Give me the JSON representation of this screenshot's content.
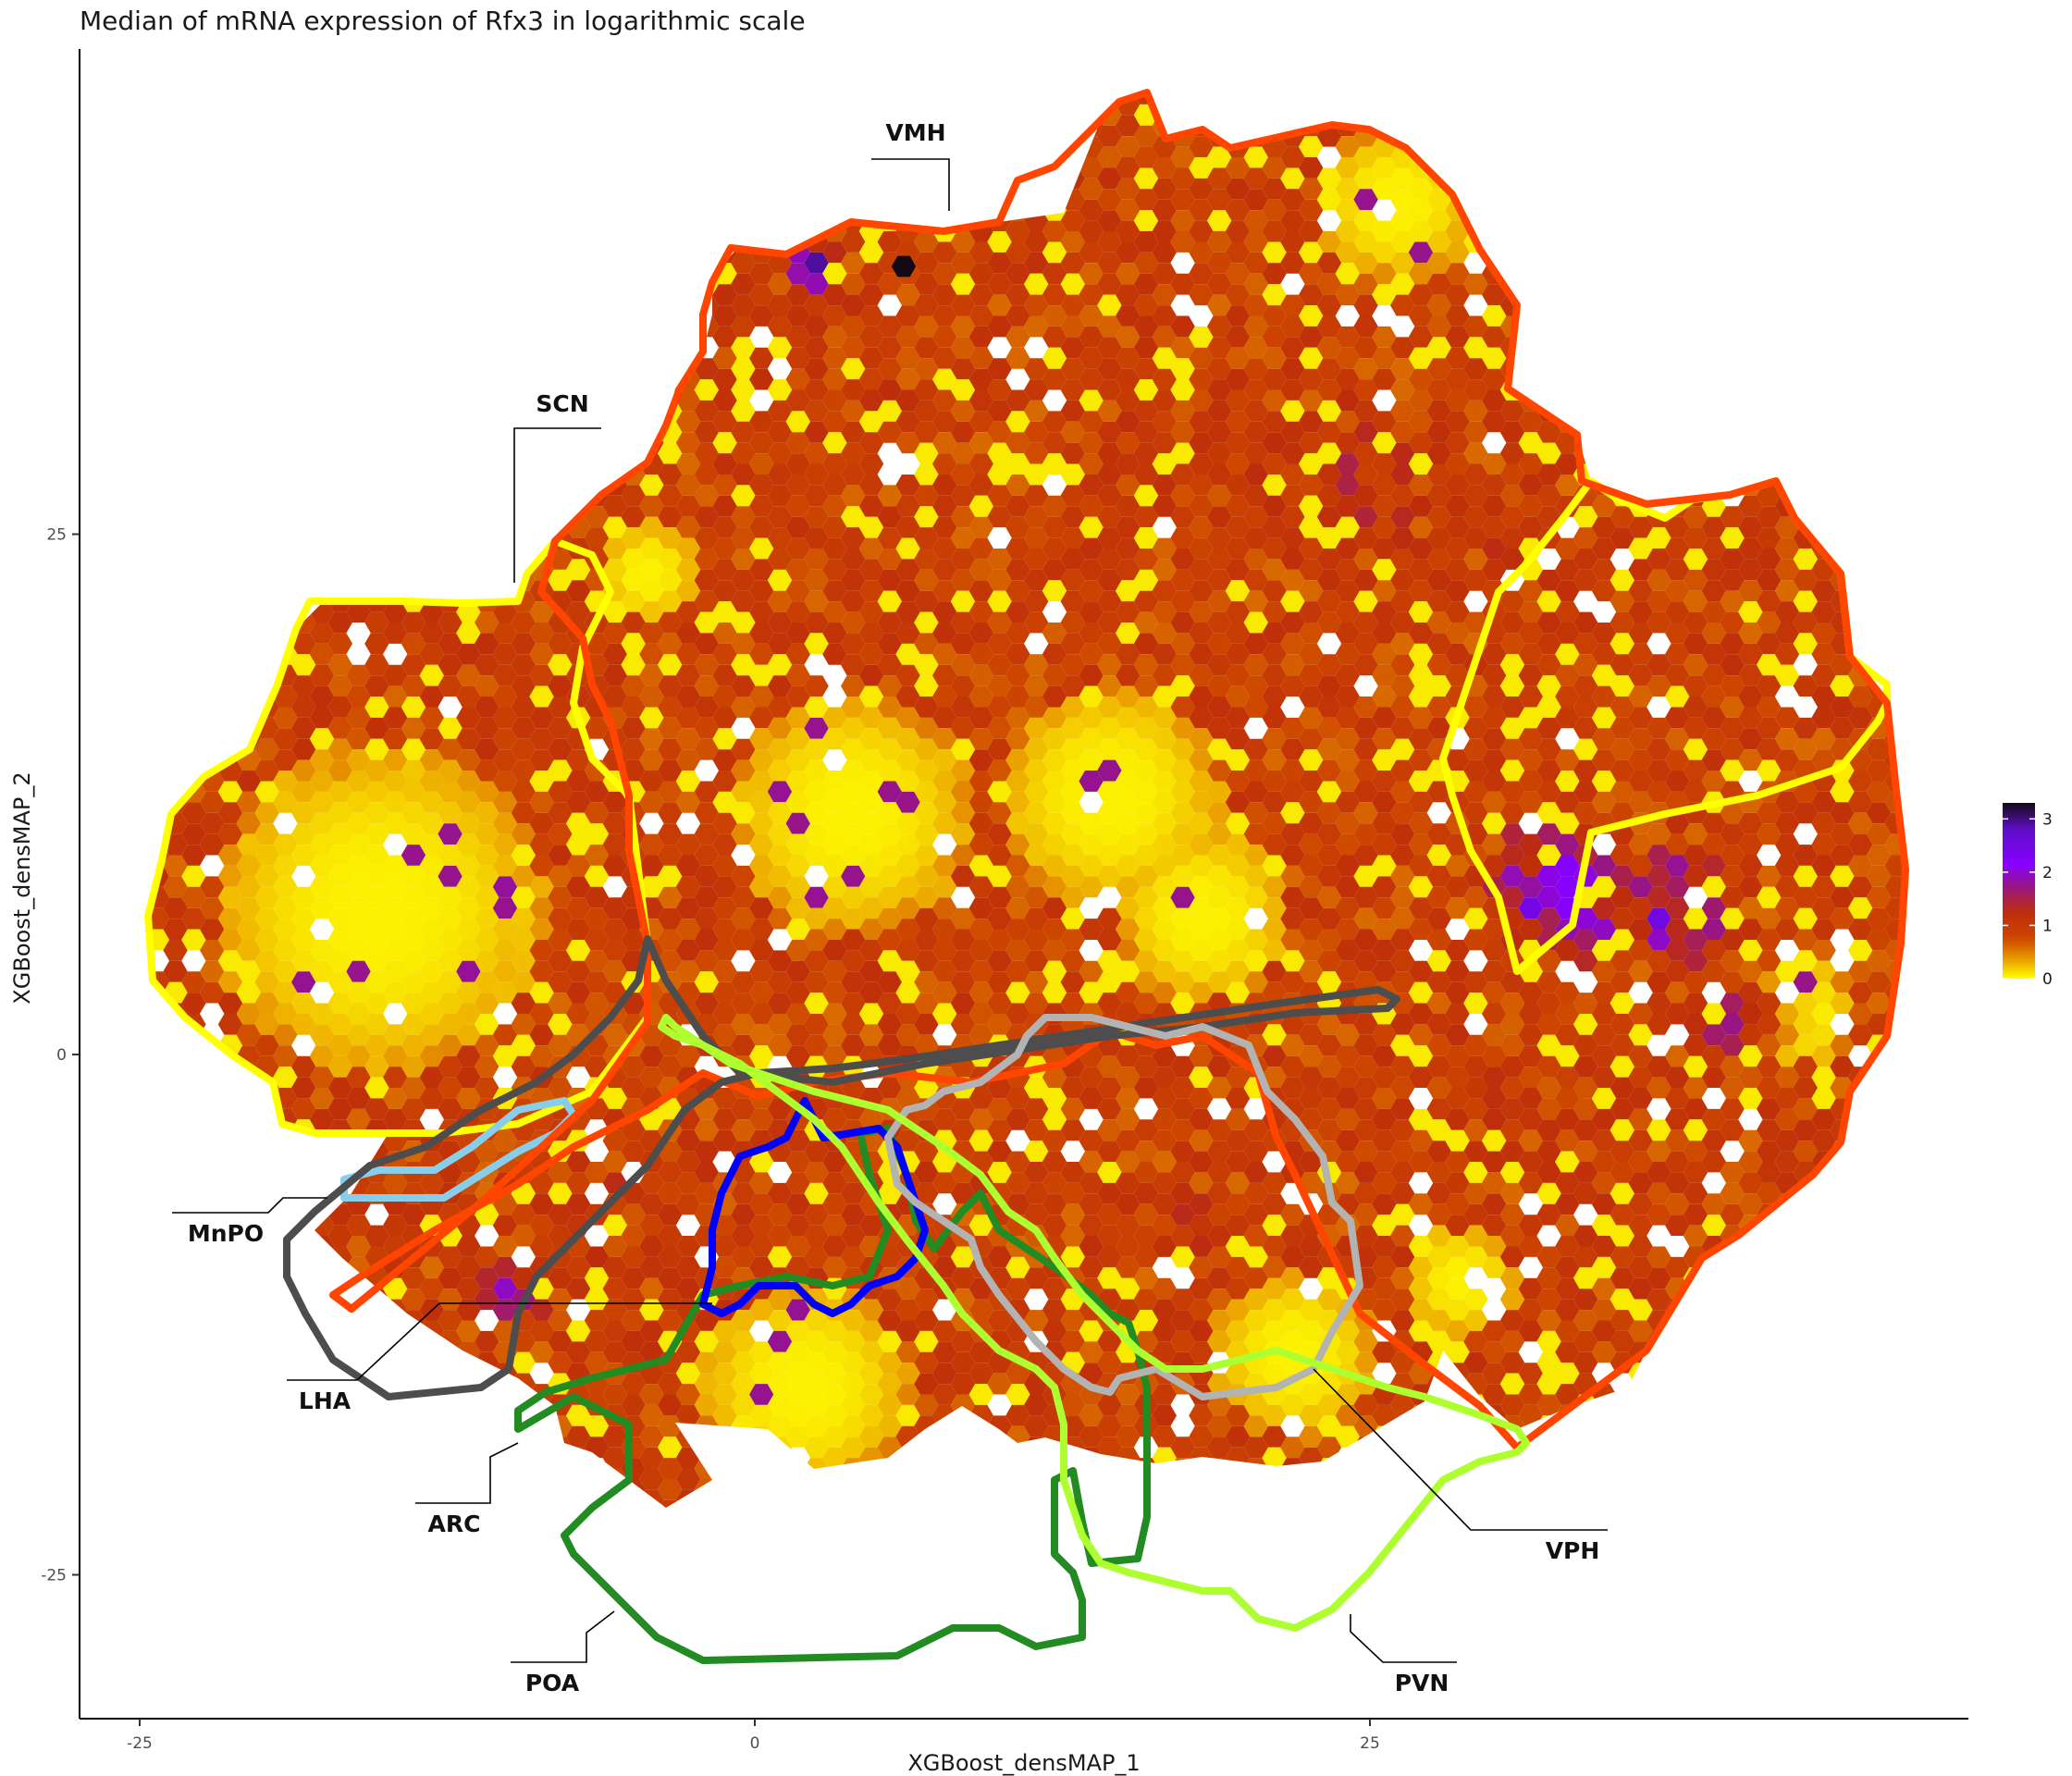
{
  "chart_data": {
    "type": "hexbin",
    "title": "Median of mRNA expression of Rfx3 in logarithmic scale",
    "xlabel": "XGBoost_densMAP_1",
    "ylabel": "XGBoost_densMAP_2",
    "x_ticks": [
      -25,
      0,
      25
    ],
    "y_ticks": [
      25,
      0,
      -25
    ],
    "xlim": [
      -25.5,
      49.5
    ],
    "ylim": [
      -32,
      48
    ],
    "grid": false,
    "legend": {
      "position": "right",
      "ticks": [
        3,
        2,
        1,
        0
      ],
      "range": [
        0,
        3.3
      ],
      "colors": [
        "#ffff00",
        "#e08a00",
        "#c43c00",
        "#a52a60",
        "#8b00ff",
        "#7010e0",
        "#1a0a1a"
      ]
    },
    "regions": [
      {
        "name": "VMH",
        "color": "#ff4500"
      },
      {
        "name": "SCN",
        "color": "#ffff00"
      },
      {
        "name": "MnPO",
        "color": "#87ceeb"
      },
      {
        "name": "LHA",
        "color": "#4d4d4d"
      },
      {
        "name": "ARC",
        "color": "#0000ff"
      },
      {
        "name": "POA",
        "color": "#228b22"
      },
      {
        "name": "VPH",
        "color": "#b3b3b3"
      },
      {
        "name": "PVN",
        "color": "#adff2f"
      }
    ]
  }
}
